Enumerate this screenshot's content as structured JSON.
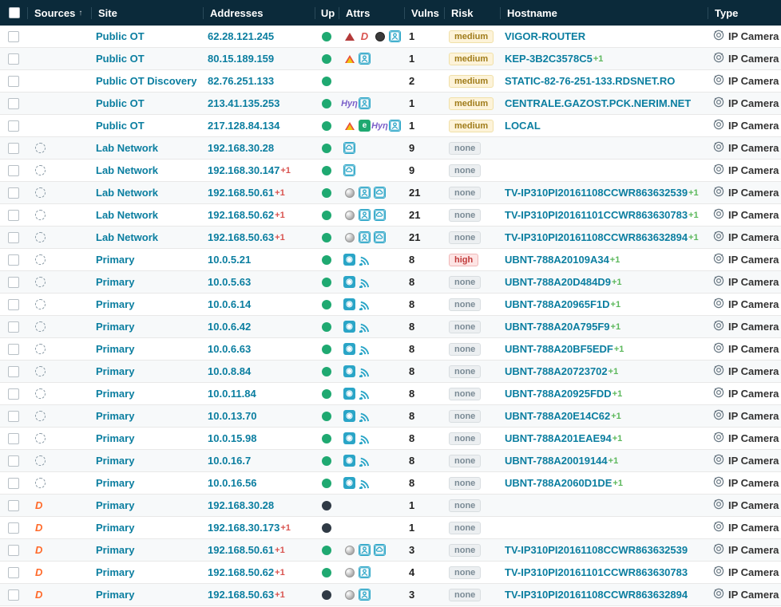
{
  "columns": {
    "sources": "Sources",
    "site": "Site",
    "addresses": "Addresses",
    "up": "Up",
    "attrs": "Attrs",
    "vulns": "Vulns",
    "risk": "Risk",
    "hostname": "Hostname",
    "type": "Type"
  },
  "sort_indicator": "↑",
  "type_label": "IP Camera",
  "risk_labels": {
    "medium": "medium",
    "high": "high",
    "none": "none"
  },
  "rows": [
    {
      "srcs": [
        "main"
      ],
      "site": "Public OT",
      "addr": "62.28.121.245",
      "addr_plus": "",
      "up": "green",
      "attrs": [
        "tri-red",
        "d",
        "circle-dark",
        "sq-person"
      ],
      "vulns": "1",
      "risk": "medium",
      "host": "VIGOR-ROUTER",
      "host_plus": ""
    },
    {
      "srcs": [
        "main"
      ],
      "site": "Public OT",
      "addr": "80.15.189.159",
      "addr_plus": "",
      "up": "green",
      "attrs": [
        "tri-multi",
        "sq-person"
      ],
      "vulns": "1",
      "risk": "medium",
      "host": "KEP-3B2C3578C5",
      "host_plus": "+1"
    },
    {
      "srcs": [
        "main"
      ],
      "site": "Public OT Discovery",
      "addr": "82.76.251.133",
      "addr_plus": "",
      "up": "green",
      "attrs": [],
      "vulns": "2",
      "risk": "medium",
      "host": "STATIC-82-76-251-133.RDSNET.RO",
      "host_plus": ""
    },
    {
      "srcs": [
        "main"
      ],
      "site": "Public OT",
      "addr": "213.41.135.253",
      "addr_plus": "",
      "up": "green",
      "attrs": [
        "hyn",
        "sq-person"
      ],
      "vulns": "1",
      "risk": "medium",
      "host": "CENTRALE.GAZOST.PCK.NERIM.NET",
      "host_plus": ""
    },
    {
      "srcs": [
        "main"
      ],
      "site": "Public OT",
      "addr": "217.128.84.134",
      "addr_plus": "",
      "up": "green",
      "attrs": [
        "tri-multi",
        "green-badge",
        "hyn",
        "sq-person"
      ],
      "vulns": "1",
      "risk": "medium",
      "host": "LOCAL",
      "host_plus": ""
    },
    {
      "srcs": [
        "main",
        "ring"
      ],
      "site": "Lab Network",
      "addr": "192.168.30.28",
      "addr_plus": "",
      "up": "green",
      "attrs": [
        "sq-cloud"
      ],
      "vulns": "9",
      "risk": "none",
      "host": "",
      "host_plus": ""
    },
    {
      "srcs": [
        "main",
        "ring"
      ],
      "site": "Lab Network",
      "addr": "192.168.30.147",
      "addr_plus": "+1",
      "up": "green",
      "attrs": [
        "sq-cloud"
      ],
      "vulns": "9",
      "risk": "none",
      "host": "",
      "host_plus": ""
    },
    {
      "srcs": [
        "main",
        "ring"
      ],
      "site": "Lab Network",
      "addr": "192.168.50.61",
      "addr_plus": "+1",
      "up": "green",
      "attrs": [
        "sphere",
        "sq-person",
        "sq-cloud"
      ],
      "vulns": "21",
      "risk": "none",
      "host": "TV-IP310PI20161108CCWR863632539",
      "host_plus": "+1"
    },
    {
      "srcs": [
        "main",
        "ring"
      ],
      "site": "Lab Network",
      "addr": "192.168.50.62",
      "addr_plus": "+1",
      "up": "green",
      "attrs": [
        "sphere",
        "sq-person",
        "sq-cloud"
      ],
      "vulns": "21",
      "risk": "none",
      "host": "TV-IP310PI20161101CCWR863630783",
      "host_plus": "+1"
    },
    {
      "srcs": [
        "main",
        "ring"
      ],
      "site": "Lab Network",
      "addr": "192.168.50.63",
      "addr_plus": "+1",
      "up": "green",
      "attrs": [
        "sphere",
        "sq-person",
        "sq-cloud"
      ],
      "vulns": "21",
      "risk": "none",
      "host": "TV-IP310PI20161108CCWR863632894",
      "host_plus": "+1"
    },
    {
      "srcs": [
        "main",
        "ring"
      ],
      "site": "Primary",
      "addr": "10.0.5.21",
      "addr_plus": "",
      "up": "green",
      "attrs": [
        "sq-fill",
        "wifi"
      ],
      "vulns": "8",
      "risk": "high",
      "host": "UBNT-788A20109A34",
      "host_plus": "+1"
    },
    {
      "srcs": [
        "main",
        "ring"
      ],
      "site": "Primary",
      "addr": "10.0.5.63",
      "addr_plus": "",
      "up": "green",
      "attrs": [
        "sq-fill",
        "wifi"
      ],
      "vulns": "8",
      "risk": "none",
      "host": "UBNT-788A20D484D9",
      "host_plus": "+1"
    },
    {
      "srcs": [
        "main",
        "ring"
      ],
      "site": "Primary",
      "addr": "10.0.6.14",
      "addr_plus": "",
      "up": "green",
      "attrs": [
        "sq-fill",
        "wifi"
      ],
      "vulns": "8",
      "risk": "none",
      "host": "UBNT-788A20965F1D",
      "host_plus": "+1"
    },
    {
      "srcs": [
        "main",
        "ring"
      ],
      "site": "Primary",
      "addr": "10.0.6.42",
      "addr_plus": "",
      "up": "green",
      "attrs": [
        "sq-fill",
        "wifi"
      ],
      "vulns": "8",
      "risk": "none",
      "host": "UBNT-788A20A795F9",
      "host_plus": "+1"
    },
    {
      "srcs": [
        "main",
        "ring"
      ],
      "site": "Primary",
      "addr": "10.0.6.63",
      "addr_plus": "",
      "up": "green",
      "attrs": [
        "sq-fill",
        "wifi"
      ],
      "vulns": "8",
      "risk": "none",
      "host": "UBNT-788A20BF5EDF",
      "host_plus": "+1"
    },
    {
      "srcs": [
        "main",
        "ring"
      ],
      "site": "Primary",
      "addr": "10.0.8.84",
      "addr_plus": "",
      "up": "green",
      "attrs": [
        "sq-fill",
        "wifi"
      ],
      "vulns": "8",
      "risk": "none",
      "host": "UBNT-788A20723702",
      "host_plus": "+1"
    },
    {
      "srcs": [
        "main",
        "ring"
      ],
      "site": "Primary",
      "addr": "10.0.11.84",
      "addr_plus": "",
      "up": "green",
      "attrs": [
        "sq-fill",
        "wifi"
      ],
      "vulns": "8",
      "risk": "none",
      "host": "UBNT-788A20925FDD",
      "host_plus": "+1"
    },
    {
      "srcs": [
        "main",
        "ring"
      ],
      "site": "Primary",
      "addr": "10.0.13.70",
      "addr_plus": "",
      "up": "green",
      "attrs": [
        "sq-fill",
        "wifi"
      ],
      "vulns": "8",
      "risk": "none",
      "host": "UBNT-788A20E14C62",
      "host_plus": "+1"
    },
    {
      "srcs": [
        "main",
        "ring"
      ],
      "site": "Primary",
      "addr": "10.0.15.98",
      "addr_plus": "",
      "up": "green",
      "attrs": [
        "sq-fill",
        "wifi"
      ],
      "vulns": "8",
      "risk": "none",
      "host": "UBNT-788A201EAE94",
      "host_plus": "+1"
    },
    {
      "srcs": [
        "main",
        "ring"
      ],
      "site": "Primary",
      "addr": "10.0.16.7",
      "addr_plus": "",
      "up": "green",
      "attrs": [
        "sq-fill",
        "wifi"
      ],
      "vulns": "8",
      "risk": "none",
      "host": "UBNT-788A20019144",
      "host_plus": "+1"
    },
    {
      "srcs": [
        "main",
        "ring"
      ],
      "site": "Primary",
      "addr": "10.0.16.56",
      "addr_plus": "",
      "up": "green",
      "attrs": [
        "sq-fill",
        "wifi"
      ],
      "vulns": "8",
      "risk": "none",
      "host": "UBNT-788A2060D1DE",
      "host_plus": "+1"
    },
    {
      "srcs": [
        "main",
        "d"
      ],
      "site": "Primary",
      "addr": "192.168.30.28",
      "addr_plus": "",
      "up": "dark",
      "attrs": [],
      "vulns": "1",
      "risk": "none",
      "host": "",
      "host_plus": ""
    },
    {
      "srcs": [
        "main",
        "d"
      ],
      "site": "Primary",
      "addr": "192.168.30.173",
      "addr_plus": "+1",
      "up": "dark",
      "attrs": [],
      "vulns": "1",
      "risk": "none",
      "host": "",
      "host_plus": ""
    },
    {
      "srcs": [
        "main",
        "d"
      ],
      "site": "Primary",
      "addr": "192.168.50.61",
      "addr_plus": "+1",
      "up": "green",
      "attrs": [
        "sphere",
        "sq-person",
        "sq-cloud"
      ],
      "vulns": "3",
      "risk": "none",
      "host": "TV-IP310PI20161108CCWR863632539",
      "host_plus": ""
    },
    {
      "srcs": [
        "main",
        "d"
      ],
      "site": "Primary",
      "addr": "192.168.50.62",
      "addr_plus": "+1",
      "up": "green",
      "attrs": [
        "sphere",
        "sq-person"
      ],
      "vulns": "4",
      "risk": "none",
      "host": "TV-IP310PI20161101CCWR863630783",
      "host_plus": ""
    },
    {
      "srcs": [
        "main",
        "d"
      ],
      "site": "Primary",
      "addr": "192.168.50.63",
      "addr_plus": "+1",
      "up": "dark",
      "attrs": [
        "sphere",
        "sq-person"
      ],
      "vulns": "3",
      "risk": "none",
      "host": "TV-IP310PI20161108CCWR863632894",
      "host_plus": ""
    }
  ]
}
